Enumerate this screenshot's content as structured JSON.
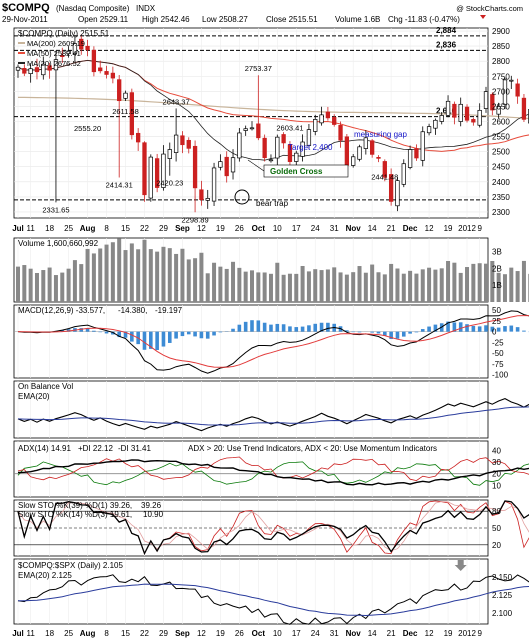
{
  "header": {
    "symbol": "$COMPQ",
    "name": "(Nasdaq Composite)",
    "exchange": "INDX",
    "date": "29-Nov-2011",
    "open": "Open 2529.11",
    "high": "High 2542.46",
    "low": "Low 2508.27",
    "close": "Close 2515.51",
    "volume": "Volume 1.6B",
    "chg": "Chg -11.83 (-0.47%)",
    "watermark": "@ StockCharts.com"
  },
  "colors": {
    "up": "#000000",
    "down": "#cc2020",
    "ma50": "#e74c3c",
    "ma20": "#222222",
    "ma200": "#c8b49a",
    "volume_bar": "#888888",
    "volume_down_bar": "#d23a3a",
    "macd_hist": "#3d8bd4",
    "signal": "#e23b3b",
    "ema": "#2a3c9c",
    "annotation_blue": "#1414c8",
    "annotation_green": "#0a6b0a",
    "arrow_red": "#e01818",
    "arrow_gray": "#888888",
    "dashed_red": "#d01010"
  },
  "price_panel": {
    "title": "$COMPQ (Daily) 2515.51",
    "legend": [
      {
        "label": "MA(200) 2609.19",
        "color": "#c8b49a"
      },
      {
        "label": "MA(50) 2582.41",
        "color": "#e74c3c"
      },
      {
        "label": "MA(20) 2676.52",
        "color": "#222222"
      }
    ],
    "yticks": [
      2300,
      2350,
      2400,
      2450,
      2500,
      2550,
      2600,
      2650,
      2700,
      2750,
      2800,
      2850,
      2900
    ],
    "ylim": [
      2280,
      2910
    ],
    "levels": [
      {
        "value": 2884,
        "label": "2,884"
      },
      {
        "value": 2836,
        "label": "2,836"
      },
      {
        "value": 2616,
        "label": "2,616"
      },
      {
        "value": 2340,
        "label": ""
      }
    ],
    "price_labels": [
      {
        "i": 6,
        "value": 2331.65,
        "text": "2331.65",
        "pos": "below"
      },
      {
        "i": 11,
        "value": 2555.2,
        "text": "2555.20",
        "pos": "above"
      },
      {
        "i": 16,
        "value": 2414.31,
        "text": "2414.31",
        "pos": "below"
      },
      {
        "i": 17,
        "value": 2611.58,
        "text": "2611.58",
        "pos": "above"
      },
      {
        "i": 24,
        "value": 2420.23,
        "text": "2420.23",
        "pos": "below"
      },
      {
        "i": 25,
        "value": 2643.37,
        "text": "2643.37",
        "pos": "above"
      },
      {
        "i": 28,
        "value": 2298.89,
        "text": "2298.89",
        "pos": "below"
      },
      {
        "i": 38,
        "value": 2753.37,
        "text": "2753.37",
        "pos": "above"
      },
      {
        "i": 43,
        "value": 2603.41,
        "text": "2603.41",
        "pos": "below"
      },
      {
        "i": 58,
        "value": 2441.48,
        "text": "2441.48",
        "pos": "below"
      }
    ],
    "annotations": {
      "measuring_gap": "measuring gap",
      "target": "Target 2,400",
      "golden_cross": "Golden Cross",
      "bear_trap": "bear trap"
    }
  },
  "x_axis": {
    "labels": [
      {
        "i": 0,
        "text": "Jul"
      },
      {
        "i": 2,
        "text": "11"
      },
      {
        "i": 5,
        "text": "18"
      },
      {
        "i": 8,
        "text": "25"
      },
      {
        "i": 11,
        "text": "Aug"
      },
      {
        "i": 14,
        "text": "8"
      },
      {
        "i": 17,
        "text": "15"
      },
      {
        "i": 20,
        "text": "22"
      },
      {
        "i": 23,
        "text": "29"
      },
      {
        "i": 26,
        "text": "Sep"
      },
      {
        "i": 29,
        "text": "12"
      },
      {
        "i": 32,
        "text": "19"
      },
      {
        "i": 35,
        "text": "26"
      },
      {
        "i": 38,
        "text": "Oct"
      },
      {
        "i": 41,
        "text": "10"
      },
      {
        "i": 44,
        "text": "17"
      },
      {
        "i": 47,
        "text": "24"
      },
      {
        "i": 50,
        "text": "31"
      },
      {
        "i": 53,
        "text": "Nov"
      },
      {
        "i": 56,
        "text": "14"
      },
      {
        "i": 59,
        "text": "21"
      },
      {
        "i": 62,
        "text": "Dec"
      },
      {
        "i": 65,
        "text": "12"
      },
      {
        "i": 68,
        "text": "19"
      },
      {
        "i": 71,
        "text": "2012"
      },
      {
        "i": 73,
        "text": "9"
      }
    ]
  },
  "volume_panel": {
    "title": "Volume 1,600,660,992",
    "yticks": [
      {
        "v": 1,
        "t": "1B"
      },
      {
        "v": 2,
        "t": "2B"
      },
      {
        "v": 3,
        "t": "3B"
      }
    ],
    "ylim": [
      0,
      3.8
    ]
  },
  "macd_panel": {
    "title_a": "MACD(12,26,9) -33.577,",
    "title_b": "-14.380,",
    "title_c": "-19.197",
    "yticks": [
      50,
      25,
      0,
      -25,
      -50,
      -75,
      -100
    ],
    "ylim": [
      -108,
      62
    ]
  },
  "obv_panel": {
    "title": "On Balance Vol",
    "ema_label": "EMA(20)"
  },
  "adx_panel": {
    "title_a": "ADX(14) 14.91",
    "title_b": "+DI 22.12",
    "title_c": "-DI 31.41",
    "note": "ADX > 20: Use Trend Indicators, ADX < 20: Use Momentum Indicators",
    "yticks": [
      40,
      30,
      20,
      10
    ],
    "ylim": [
      0,
      48
    ]
  },
  "slowsto_panel": {
    "title_a": "Slow STO %K(39) %D(1) 39.26,",
    "title_b": "39.26",
    "title_c": "Slow STO %K(14) %D(3) 19.61,",
    "title_d": "10.90",
    "yticks": [
      80,
      50,
      20
    ],
    "ylim": [
      0,
      100
    ]
  },
  "ratio_panel": {
    "title": "$COMPQ:$SPX (Daily) 2.105",
    "ema_label": "EMA(20) 2.125",
    "yticks": [
      {
        "v": 2.15,
        "t": "2.150"
      },
      {
        "v": 2.125,
        "t": "2.125"
      },
      {
        "v": 2.1,
        "t": "2.100"
      }
    ],
    "ylim": [
      2.085,
      2.175
    ]
  },
  "chart_data": {
    "type": "candlestick",
    "title": "$COMPQ (Daily) 2515.51",
    "x": [
      "Jul 11",
      "Jul 12",
      "Jul 13",
      "Jul 14",
      "Jul 15",
      "Jul 18",
      "Jul 19",
      "Jul 20",
      "Jul 21",
      "Jul 22",
      "Jul 25",
      "Jul 26",
      "Jul 27",
      "Jul 28",
      "Jul 29",
      "Aug 1",
      "Aug 2",
      "Aug 3",
      "Aug 4",
      "Aug 5",
      "Aug 8",
      "Aug 9",
      "Aug 10",
      "Aug 11",
      "Aug 12",
      "Aug 15",
      "Aug 16",
      "Aug 17",
      "Aug 18",
      "Aug 19",
      "Aug 22",
      "Aug 23",
      "Aug 24",
      "Aug 25",
      "Aug 26",
      "Aug 29",
      "Aug 30",
      "Aug 31",
      "Sep 1",
      "Sep 2",
      "Sep 6",
      "Sep 7",
      "Sep 8",
      "Sep 9",
      "Sep 12",
      "Sep 13",
      "Sep 14",
      "Sep 15",
      "Sep 16",
      "Sep 19",
      "Sep 20",
      "Sep 21",
      "Sep 22",
      "Sep 23",
      "Sep 26",
      "Sep 27",
      "Sep 28",
      "Sep 29",
      "Sep 30",
      "Oct 3",
      "Oct 4",
      "Oct 5",
      "Oct 6",
      "Oct 7",
      "Oct 10",
      "Oct 11",
      "Oct 12",
      "Oct 13",
      "Oct 14",
      "Oct 17",
      "Oct 18",
      "Oct 19",
      "Oct 20",
      "Oct 21",
      "Oct 24",
      "Oct 25",
      "Oct 26",
      "Oct 27",
      "Oct 28",
      "Oct 31",
      "Nov 1",
      "Nov 2",
      "Nov 3",
      "Nov 4",
      "Nov 7",
      "Nov 8",
      "Nov 9",
      "Nov 10",
      "Nov 11",
      "Nov 14",
      "Nov 15",
      "Nov 16",
      "Nov 17",
      "Nov 18",
      "Nov 21",
      "Nov 22",
      "Nov 23",
      "Nov 25",
      "Nov 28",
      "Nov 29"
    ],
    "close": [
      2780,
      2760,
      2775,
      2765,
      2790,
      2770,
      2805,
      2815,
      2834,
      2858,
      2840,
      2838,
      2765,
      2768,
      2756,
      2744,
      2669,
      2694,
      2556,
      2532,
      2357,
      2482,
      2381,
      2492,
      2507,
      2555,
      2523,
      2511,
      2380,
      2341,
      2345,
      2446,
      2467,
      2420,
      2480,
      2562,
      2576,
      2579,
      2546,
      2480,
      2473,
      2548,
      2529,
      2467,
      2495,
      2532,
      2573,
      2607,
      2622,
      2612,
      2590,
      2538,
      2455,
      2483,
      2516,
      2546,
      2491,
      2480,
      2415,
      2335,
      2404,
      2460,
      2507,
      2479,
      2566,
      2583,
      2604,
      2620,
      2667,
      2614,
      2657,
      2604,
      2598,
      2637,
      2699,
      2638,
      2650,
      2738,
      2737,
      2684,
      2607,
      2640,
      2698,
      2686,
      2695,
      2727,
      2621,
      2625,
      2678,
      2657,
      2686,
      2639,
      2587,
      2573,
      2524,
      2521,
      2460,
      2441,
      2527,
      2515
    ],
    "ylim": [
      2280,
      2910
    ],
    "ma20": "computed",
    "ma50": "computed",
    "ma200": "computed"
  }
}
